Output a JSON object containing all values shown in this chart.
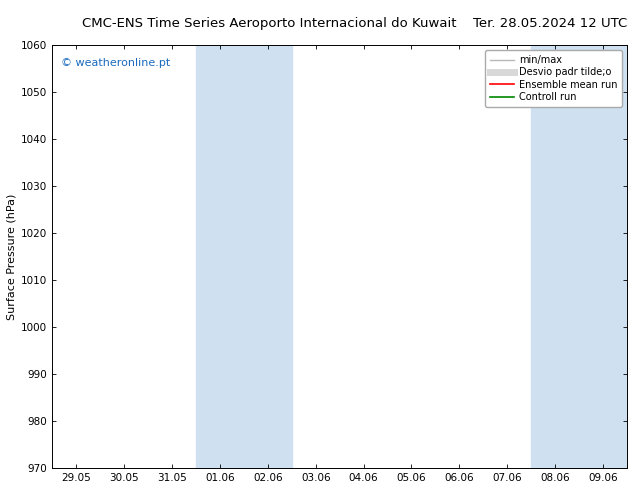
{
  "title": "CMC-ENS Time Series Aeroporto Internacional do Kuwait",
  "date_label": "Ter. 28.05.2024 12 UTC",
  "ylabel": "Surface Pressure (hPa)",
  "ylim": [
    970,
    1060
  ],
  "yticks": [
    970,
    980,
    990,
    1000,
    1010,
    1020,
    1030,
    1040,
    1050,
    1060
  ],
  "xtick_labels": [
    "29.05",
    "30.05",
    "31.05",
    "01.06",
    "02.06",
    "03.06",
    "04.06",
    "05.06",
    "06.06",
    "07.06",
    "08.06",
    "09.06"
  ],
  "shaded_bands": [
    {
      "start": 3,
      "end": 5
    },
    {
      "start": 10,
      "end": 12
    }
  ],
  "shade_color": "#cfe0f0",
  "watermark": "© weatheronline.pt",
  "watermark_color": "#1a6bbf",
  "legend_entries": [
    {
      "label": "min/max",
      "color": "#b8b8b8",
      "lw": 1.0,
      "style": "solid"
    },
    {
      "label": "Desvio padr tilde;o",
      "color": "#d8d8d8",
      "lw": 5,
      "style": "solid"
    },
    {
      "label": "Ensemble mean run",
      "color": "#ff0000",
      "lw": 1.2,
      "style": "solid"
    },
    {
      "label": "Controll run",
      "color": "#008800",
      "lw": 1.2,
      "style": "solid"
    }
  ],
  "bg_color": "#ffffff",
  "plot_bg_color": "#ffffff",
  "title_fontsize": 9.5,
  "date_fontsize": 9.5,
  "ylabel_fontsize": 8,
  "tick_fontsize": 7.5,
  "watermark_fontsize": 8,
  "legend_fontsize": 7
}
